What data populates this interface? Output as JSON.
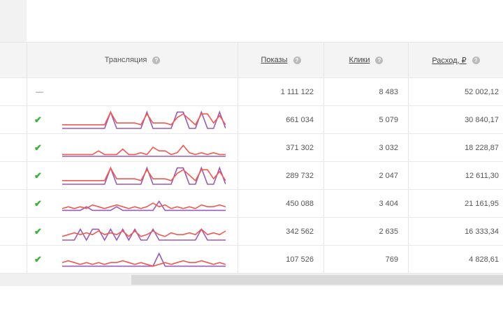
{
  "colors": {
    "impressions_line": "#f05a50",
    "clicks_line": "#9b59b6",
    "check": "#3ab03a"
  },
  "header": {
    "broadcast": "Трансляция",
    "impressions": "Показы",
    "clicks": "Клики",
    "spend": "Расход, ₽",
    "help": "?"
  },
  "total": {
    "broadcast": "—",
    "impressions": "1 111 122",
    "clicks": "8 483",
    "spend": "52 002,12"
  },
  "rows": [
    {
      "status": "✔",
      "impressions": "661 034",
      "clicks": "5 079",
      "spend": "30 840,17",
      "red": [
        2,
        2,
        2,
        2,
        2,
        2,
        2,
        2,
        9,
        3,
        3,
        3,
        3,
        2,
        8,
        3,
        3,
        3,
        2,
        6,
        8,
        5,
        2,
        8,
        8,
        3,
        7,
        2
      ],
      "purple": [
        0,
        0,
        0,
        0,
        0,
        0,
        0,
        0,
        9,
        0,
        0,
        0,
        0,
        0,
        9,
        0,
        0,
        0,
        0,
        9,
        9,
        0,
        0,
        9,
        0,
        0,
        9,
        0
      ]
    },
    {
      "status": "✔",
      "impressions": "371 302",
      "clicks": "3 032",
      "spend": "18 228,87",
      "red": [
        1,
        1,
        1,
        1,
        1,
        1,
        3,
        1,
        1,
        1,
        4,
        1,
        1,
        2,
        1,
        5,
        3,
        3,
        1,
        2,
        6,
        2,
        1,
        2,
        1,
        2,
        1,
        1
      ],
      "purple": [
        0,
        0,
        0,
        0,
        0,
        0,
        0,
        0,
        0,
        0,
        0,
        0,
        0,
        0,
        0,
        0,
        0,
        0,
        0,
        0,
        0,
        0,
        0,
        0,
        0,
        0,
        0,
        0
      ]
    },
    {
      "status": "✔",
      "impressions": "289 732",
      "clicks": "2 047",
      "spend": "12 611,30",
      "red": [
        2,
        2,
        2,
        2,
        2,
        2,
        2,
        2,
        9,
        3,
        3,
        3,
        3,
        2,
        8,
        3,
        3,
        3,
        2,
        6,
        8,
        5,
        2,
        8,
        8,
        3,
        7,
        2
      ],
      "purple": [
        0,
        0,
        0,
        0,
        0,
        0,
        0,
        0,
        9,
        0,
        0,
        0,
        0,
        0,
        9,
        0,
        0,
        0,
        0,
        9,
        9,
        0,
        0,
        9,
        0,
        0,
        9,
        0
      ]
    },
    {
      "status": "✔",
      "impressions": "450 088",
      "clicks": "3 404",
      "spend": "21 161,95",
      "red": [
        2,
        3,
        2,
        3,
        2,
        4,
        3,
        2,
        3,
        4,
        3,
        2,
        3,
        2,
        3,
        5,
        3,
        4,
        2,
        3,
        2,
        3,
        2,
        4,
        3,
        3,
        4,
        3
      ],
      "purple": [
        1,
        1,
        1,
        1,
        3,
        1,
        1,
        1,
        1,
        3,
        1,
        1,
        1,
        1,
        1,
        1,
        6,
        1,
        1,
        1,
        1,
        1,
        1,
        1,
        1,
        1,
        1,
        1
      ]
    },
    {
      "status": "✔",
      "impressions": "342 562",
      "clicks": "2 635",
      "spend": "16 333,34",
      "red": [
        2,
        3,
        4,
        3,
        4,
        3,
        5,
        3,
        4,
        3,
        5,
        2,
        5,
        2,
        3,
        5,
        3,
        2,
        4,
        3,
        3,
        4,
        3,
        6,
        3,
        4,
        3,
        5
      ],
      "purple": [
        0,
        0,
        0,
        6,
        0,
        6,
        6,
        0,
        6,
        0,
        6,
        0,
        6,
        0,
        0,
        6,
        0,
        0,
        0,
        0,
        0,
        0,
        0,
        6,
        0,
        0,
        0,
        0
      ]
    },
    {
      "status": "✔",
      "impressions": "107 526",
      "clicks": "769",
      "spend": "4 828,61",
      "red": [
        3,
        4,
        3,
        2,
        3,
        2,
        3,
        2,
        3,
        3,
        4,
        3,
        2,
        3,
        2,
        1,
        2,
        3,
        2,
        3,
        4,
        3,
        3,
        4,
        3,
        2,
        3,
        2
      ],
      "purple": [
        1,
        1,
        1,
        1,
        1,
        1,
        1,
        1,
        1,
        1,
        1,
        1,
        1,
        1,
        1,
        1,
        8,
        1,
        1,
        1,
        1,
        1,
        1,
        1,
        1,
        1,
        1,
        1
      ]
    }
  ]
}
